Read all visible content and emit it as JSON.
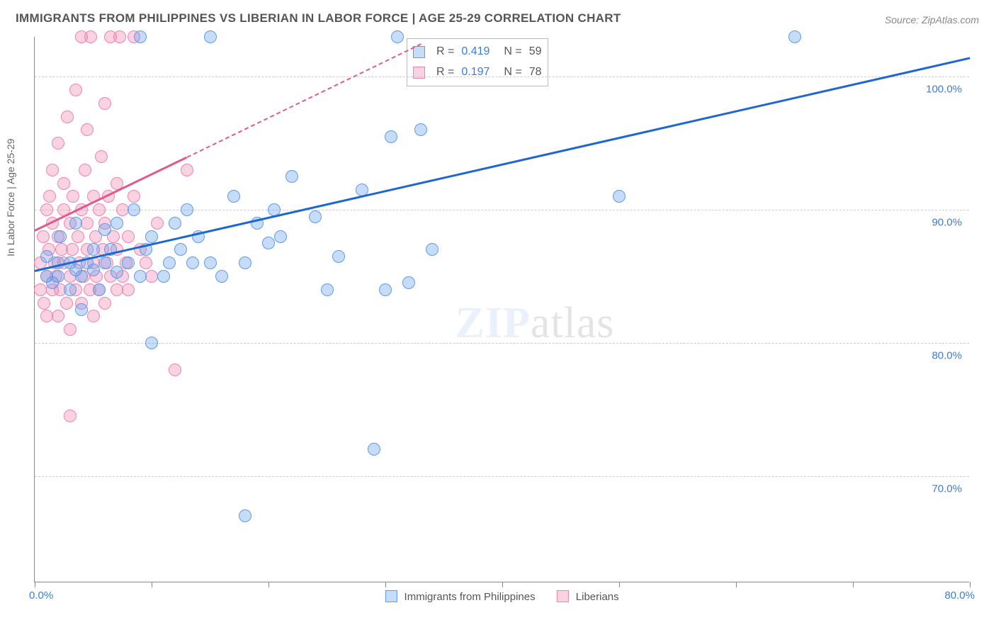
{
  "title": "IMMIGRANTS FROM PHILIPPINES VS LIBERIAN IN LABOR FORCE | AGE 25-29 CORRELATION CHART",
  "source": "Source: ZipAtlas.com",
  "ylabel": "In Labor Force | Age 25-29",
  "watermark_a": "ZIP",
  "watermark_b": "atlas",
  "chart": {
    "type": "scatter",
    "background_color": "#ffffff",
    "grid_color": "#cccccc",
    "axis_color": "#888888",
    "label_color": "#3b7dd8",
    "title_fontsize": 17,
    "label_fontsize": 15,
    "xlim": [
      0,
      80
    ],
    "ylim": [
      62,
      103
    ],
    "xtick_positions": [
      0,
      10,
      20,
      30,
      40,
      50,
      60,
      70,
      80
    ],
    "ytick_positions": [
      70,
      80,
      90,
      100
    ],
    "ytick_labels": [
      "70.0%",
      "80.0%",
      "90.0%",
      "100.0%"
    ],
    "x_min_label": "0.0%",
    "x_max_label": "80.0%",
    "series": [
      {
        "name": "Immigrants from Philippines",
        "fill": "rgba(93,156,236,0.35)",
        "stroke": "#5d9cec",
        "trend_color": "#1e66d0",
        "r_value": "0.419",
        "n_value": "59",
        "trend": {
          "x1": 0,
          "y1": 85.5,
          "x2": 80,
          "y2": 101.5
        },
        "points": [
          [
            1,
            85
          ],
          [
            1,
            86.5
          ],
          [
            1.5,
            84.5
          ],
          [
            2,
            86
          ],
          [
            2,
            85
          ],
          [
            2.2,
            88
          ],
          [
            3,
            84
          ],
          [
            3,
            86
          ],
          [
            3.5,
            85.5
          ],
          [
            3.5,
            89
          ],
          [
            4,
            85
          ],
          [
            4,
            82.5
          ],
          [
            4.5,
            86
          ],
          [
            5,
            85.5
          ],
          [
            5,
            87
          ],
          [
            5.5,
            84
          ],
          [
            6,
            86
          ],
          [
            6,
            88.5
          ],
          [
            6.5,
            87
          ],
          [
            7,
            85.3
          ],
          [
            7,
            89
          ],
          [
            8,
            86
          ],
          [
            8.5,
            90
          ],
          [
            9,
            85
          ],
          [
            9,
            103
          ],
          [
            9.5,
            87
          ],
          [
            10,
            88
          ],
          [
            10,
            80
          ],
          [
            11,
            85
          ],
          [
            11.5,
            86
          ],
          [
            12,
            89
          ],
          [
            12.5,
            87
          ],
          [
            13,
            90
          ],
          [
            13.5,
            86
          ],
          [
            14,
            88
          ],
          [
            15,
            103
          ],
          [
            15,
            86
          ],
          [
            16,
            85
          ],
          [
            17,
            91
          ],
          [
            18,
            67
          ],
          [
            18,
            86
          ],
          [
            19,
            89
          ],
          [
            20,
            87.5
          ],
          [
            20.5,
            90
          ],
          [
            21,
            88
          ],
          [
            22,
            92.5
          ],
          [
            24,
            89.5
          ],
          [
            25,
            84
          ],
          [
            26,
            86.5
          ],
          [
            28,
            91.5
          ],
          [
            29,
            72
          ],
          [
            30,
            84
          ],
          [
            30.5,
            95.5
          ],
          [
            31,
            103
          ],
          [
            32,
            84.5
          ],
          [
            33,
            96
          ],
          [
            34,
            87
          ],
          [
            50,
            91
          ],
          [
            65,
            103
          ]
        ]
      },
      {
        "name": "Liberians",
        "fill": "rgba(241,130,174,0.35)",
        "stroke": "#f182ae",
        "trend_color": "#e05b8d",
        "r_value": "0.197",
        "n_value": "78",
        "trend_solid": {
          "x1": 0,
          "y1": 88.5,
          "x2": 13,
          "y2": 94
        },
        "trend_dash": {
          "x1": 13,
          "y1": 94,
          "x2": 33,
          "y2": 102.5
        },
        "points": [
          [
            0.5,
            84
          ],
          [
            0.5,
            86
          ],
          [
            0.7,
            88
          ],
          [
            0.8,
            83
          ],
          [
            1,
            85
          ],
          [
            1,
            90
          ],
          [
            1,
            82
          ],
          [
            1.2,
            87
          ],
          [
            1.3,
            91
          ],
          [
            1.5,
            84
          ],
          [
            1.5,
            89
          ],
          [
            1.5,
            93
          ],
          [
            1.7,
            86
          ],
          [
            1.8,
            85
          ],
          [
            2,
            88
          ],
          [
            2,
            82
          ],
          [
            2,
            95
          ],
          [
            2.2,
            84
          ],
          [
            2.3,
            87
          ],
          [
            2.5,
            90
          ],
          [
            2.5,
            86
          ],
          [
            2.5,
            92
          ],
          [
            2.7,
            83
          ],
          [
            2.8,
            97
          ],
          [
            3,
            85
          ],
          [
            3,
            89
          ],
          [
            3,
            81
          ],
          [
            3,
            74.5
          ],
          [
            3.2,
            87
          ],
          [
            3.3,
            91
          ],
          [
            3.5,
            84
          ],
          [
            3.5,
            99
          ],
          [
            3.7,
            88
          ],
          [
            3.8,
            86
          ],
          [
            4,
            90
          ],
          [
            4,
            83
          ],
          [
            4,
            103
          ],
          [
            4.2,
            85
          ],
          [
            4.3,
            93
          ],
          [
            4.5,
            87
          ],
          [
            4.5,
            89
          ],
          [
            4.5,
            96
          ],
          [
            4.7,
            84
          ],
          [
            4.8,
            103
          ],
          [
            5,
            86
          ],
          [
            5,
            91
          ],
          [
            5,
            82
          ],
          [
            5.2,
            88
          ],
          [
            5.3,
            85
          ],
          [
            5.5,
            90
          ],
          [
            5.5,
            84
          ],
          [
            5.7,
            94
          ],
          [
            5.8,
            87
          ],
          [
            6,
            89
          ],
          [
            6,
            83
          ],
          [
            6,
            98
          ],
          [
            6.2,
            86
          ],
          [
            6.3,
            91
          ],
          [
            6.5,
            85
          ],
          [
            6.5,
            103
          ],
          [
            6.7,
            88
          ],
          [
            7,
            84
          ],
          [
            7,
            92
          ],
          [
            7,
            87
          ],
          [
            7.3,
            103
          ],
          [
            7.5,
            85
          ],
          [
            7.5,
            90
          ],
          [
            7.8,
            86
          ],
          [
            8,
            88
          ],
          [
            8,
            84
          ],
          [
            8.5,
            91
          ],
          [
            8.5,
            103
          ],
          [
            9,
            87
          ],
          [
            9.5,
            86
          ],
          [
            10,
            85
          ],
          [
            10.5,
            89
          ],
          [
            12,
            78
          ],
          [
            13,
            93
          ]
        ]
      }
    ]
  }
}
